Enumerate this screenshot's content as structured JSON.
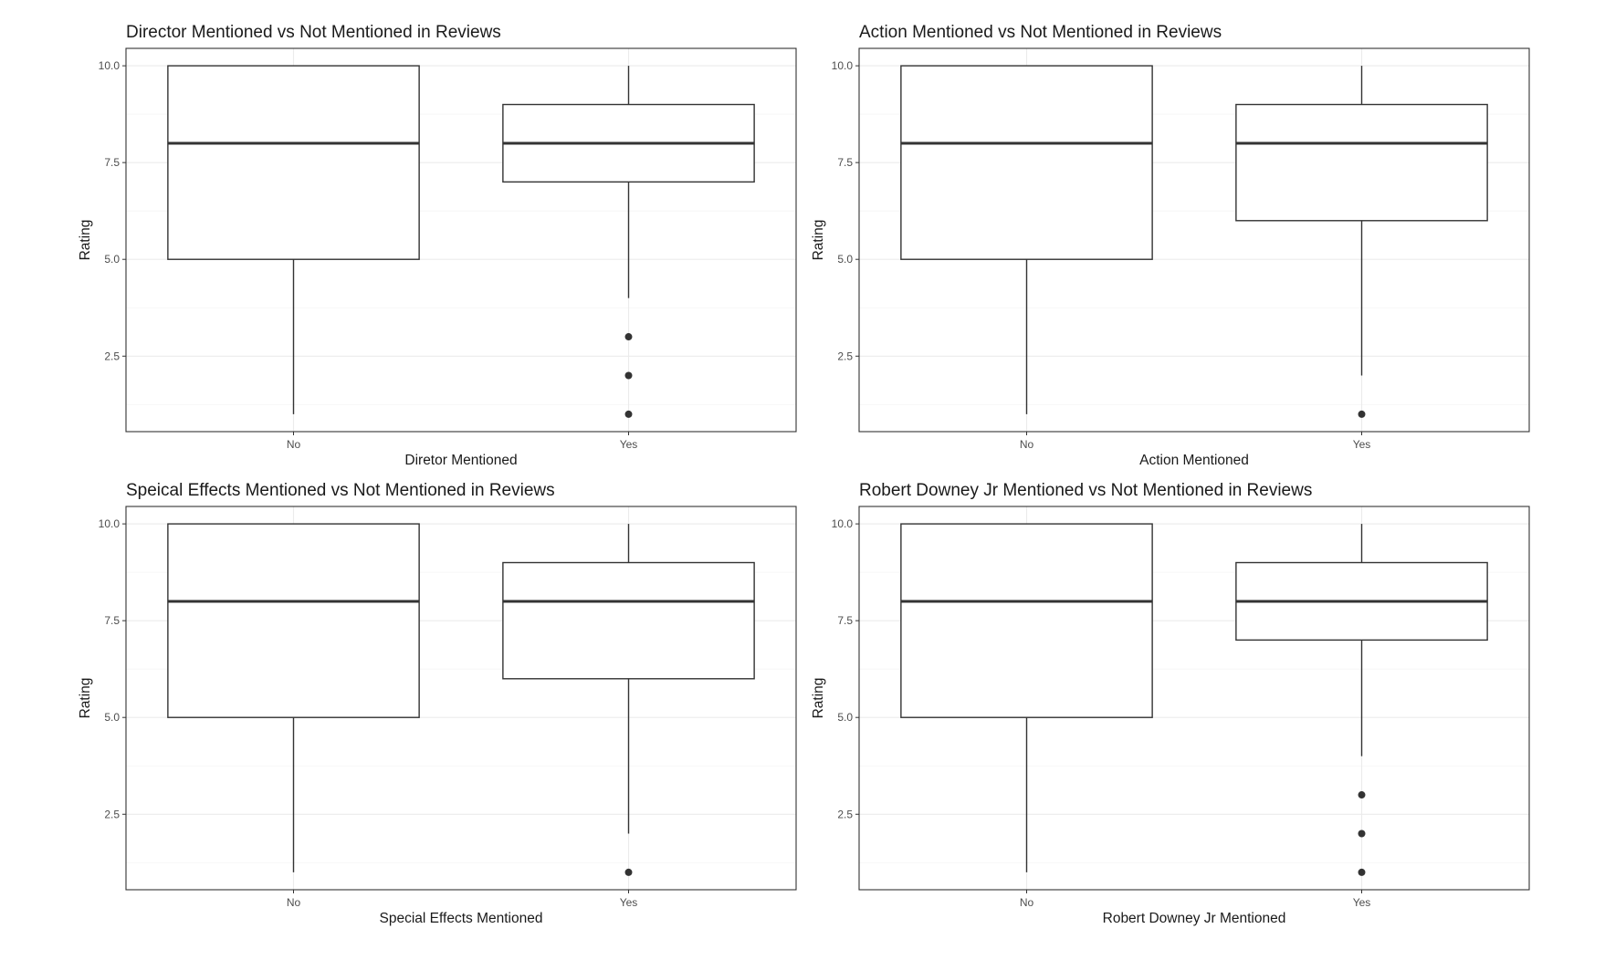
{
  "chart_data": [
    {
      "type": "boxplot",
      "title": "Director Mentioned vs Not Mentioned in Reviews",
      "xlabel": "Diretor Mentioned",
      "ylabel": "Rating",
      "categories": [
        "No",
        "Yes"
      ],
      "yticks": [
        "2.5",
        "5.0",
        "7.5",
        "10.0"
      ],
      "ylim": [
        0.55,
        10.45
      ],
      "grid": true,
      "boxes": [
        {
          "category": "No",
          "whisker_low": 1,
          "q1": 5,
          "median": 8,
          "q3": 10,
          "whisker_high": 10,
          "outliers": []
        },
        {
          "category": "Yes",
          "whisker_low": 4,
          "q1": 7,
          "median": 8,
          "q3": 9,
          "whisker_high": 10,
          "outliers": [
            3,
            2,
            1
          ]
        }
      ]
    },
    {
      "type": "boxplot",
      "title": "Action Mentioned vs Not Mentioned in Reviews",
      "xlabel": "Action Mentioned",
      "ylabel": "Rating",
      "categories": [
        "No",
        "Yes"
      ],
      "yticks": [
        "2.5",
        "5.0",
        "7.5",
        "10.0"
      ],
      "ylim": [
        0.55,
        10.45
      ],
      "grid": true,
      "boxes": [
        {
          "category": "No",
          "whisker_low": 1,
          "q1": 5,
          "median": 8,
          "q3": 10,
          "whisker_high": 10,
          "outliers": []
        },
        {
          "category": "Yes",
          "whisker_low": 2,
          "q1": 6,
          "median": 8,
          "q3": 9,
          "whisker_high": 10,
          "outliers": [
            1
          ]
        }
      ]
    },
    {
      "type": "boxplot",
      "title": "Speical Effects Mentioned vs Not Mentioned in Reviews",
      "xlabel": "Special Effects Mentioned",
      "ylabel": "Rating",
      "categories": [
        "No",
        "Yes"
      ],
      "yticks": [
        "2.5",
        "5.0",
        "7.5",
        "10.0"
      ],
      "ylim": [
        0.55,
        10.45
      ],
      "grid": true,
      "boxes": [
        {
          "category": "No",
          "whisker_low": 1,
          "q1": 5,
          "median": 8,
          "q3": 10,
          "whisker_high": 10,
          "outliers": []
        },
        {
          "category": "Yes",
          "whisker_low": 2,
          "q1": 6,
          "median": 8,
          "q3": 9,
          "whisker_high": 10,
          "outliers": [
            1
          ]
        }
      ]
    },
    {
      "type": "boxplot",
      "title": "Robert Downey Jr Mentioned vs Not Mentioned in Reviews",
      "xlabel": "Robert Downey Jr Mentioned",
      "ylabel": "Rating",
      "categories": [
        "No",
        "Yes"
      ],
      "yticks": [
        "2.5",
        "5.0",
        "7.5",
        "10.0"
      ],
      "ylim": [
        0.55,
        10.45
      ],
      "grid": true,
      "boxes": [
        {
          "category": "No",
          "whisker_low": 1,
          "q1": 5,
          "median": 8,
          "q3": 10,
          "whisker_high": 10,
          "outliers": []
        },
        {
          "category": "Yes",
          "whisker_low": 4,
          "q1": 7,
          "median": 8,
          "q3": 9,
          "whisker_high": 10,
          "outliers": [
            3,
            2,
            1
          ]
        }
      ]
    }
  ]
}
